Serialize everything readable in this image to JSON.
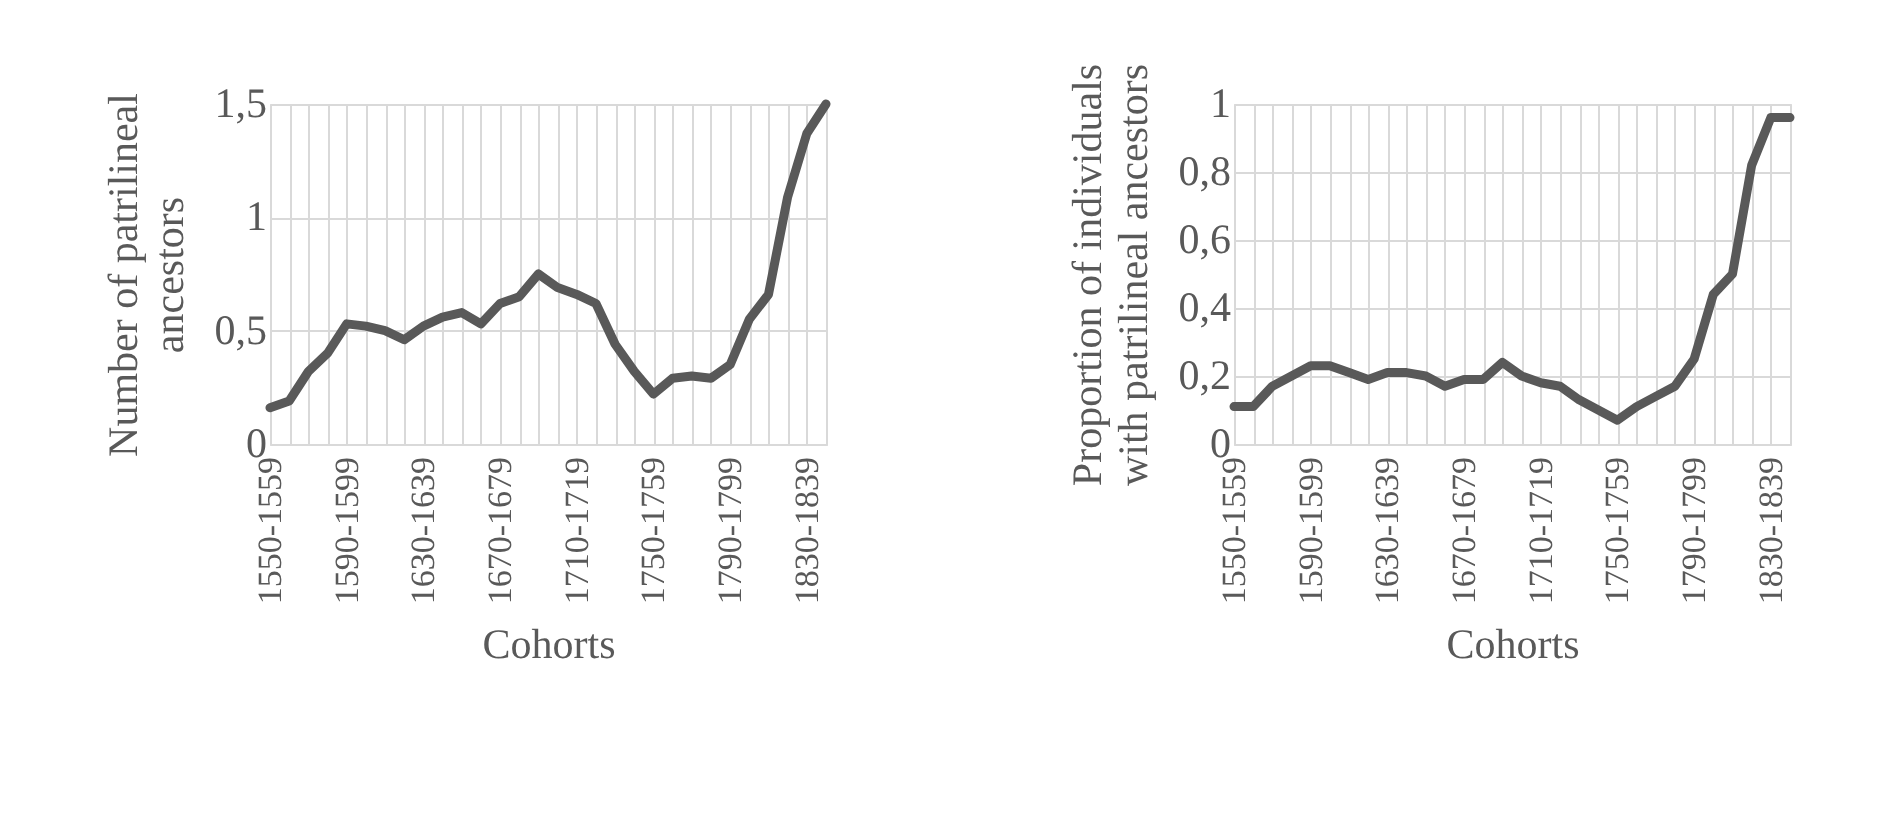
{
  "chart_data": [
    {
      "type": "line",
      "ylabel": "Number of patrilineal\nancestors",
      "xlabel": "Cohorts",
      "categories": [
        "1550-1559",
        null,
        null,
        null,
        "1590-1599",
        null,
        null,
        null,
        "1630-1639",
        null,
        null,
        null,
        "1670-1679",
        null,
        null,
        null,
        "1710-1719",
        null,
        null,
        null,
        "1750-1759",
        null,
        null,
        null,
        "1790-1799",
        null,
        null,
        null,
        "1830-1839",
        null
      ],
      "series": [
        {
          "color": "#595959",
          "values": [
            0.16,
            0.19,
            0.32,
            0.4,
            0.53,
            0.52,
            0.5,
            0.46,
            0.52,
            0.56,
            0.58,
            0.53,
            0.62,
            0.65,
            0.75,
            0.69,
            0.66,
            0.62,
            0.44,
            0.32,
            0.22,
            0.29,
            0.3,
            0.29,
            0.35,
            0.55,
            0.66,
            1.09,
            1.37,
            1.5
          ]
        }
      ],
      "ylim": [
        0,
        1.5
      ],
      "yticks": [
        0,
        {
          "value": 0.5,
          "label": "0,5"
        },
        1,
        {
          "value": 1.5,
          "label": "1,5"
        }
      ],
      "grid": true,
      "line_style": "solid",
      "marker": "none",
      "legend": false
    },
    {
      "type": "line",
      "ylabel": "Proportion of individuals\nwith patrilineal ancestors",
      "xlabel": "Cohorts",
      "categories": [
        "1550-1559",
        null,
        null,
        null,
        "1590-1599",
        null,
        null,
        null,
        "1630-1639",
        null,
        null,
        null,
        "1670-1679",
        null,
        null,
        null,
        "1710-1719",
        null,
        null,
        null,
        "1750-1759",
        null,
        null,
        null,
        "1790-1799",
        null,
        null,
        null,
        "1830-1839",
        null
      ],
      "series": [
        {
          "color": "#595959",
          "values": [
            0.11,
            0.11,
            0.17,
            0.2,
            0.23,
            0.23,
            0.21,
            0.19,
            0.21,
            0.21,
            0.2,
            0.17,
            0.19,
            0.19,
            0.24,
            0.2,
            0.18,
            0.17,
            0.13,
            0.1,
            0.07,
            0.11,
            0.14,
            0.17,
            0.25,
            0.44,
            0.5,
            0.82,
            0.96,
            0.96
          ]
        }
      ],
      "ylim": [
        0,
        1
      ],
      "yticks": [
        0,
        {
          "value": 0.2,
          "label": "0,2"
        },
        {
          "value": 0.4,
          "label": "0,4"
        },
        {
          "value": 0.6,
          "label": "0,6"
        },
        {
          "value": 0.8,
          "label": "0,8"
        },
        1
      ],
      "grid": true,
      "line_style": "solid",
      "marker": "none",
      "legend": false
    }
  ]
}
